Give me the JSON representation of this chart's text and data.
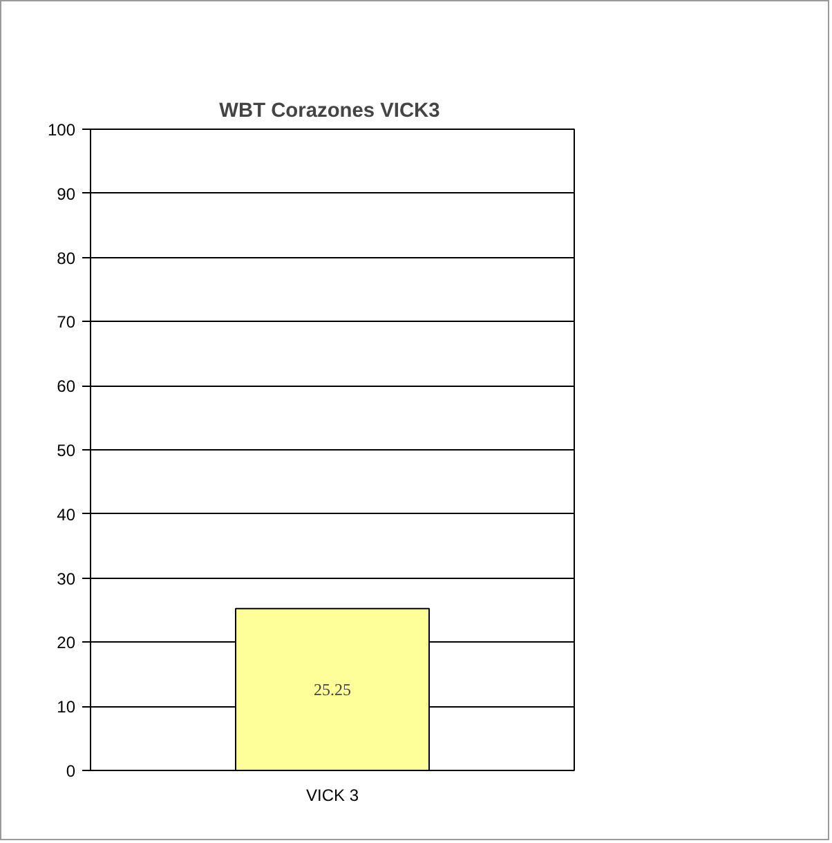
{
  "chart_data": {
    "type": "bar",
    "title": "WBT Corazones  VICK3",
    "categories": [
      "VICK 3"
    ],
    "values": [
      25.25
    ],
    "color": "#ffff99",
    "ylim": [
      0,
      100
    ],
    "yticks": [
      0,
      10,
      20,
      30,
      40,
      50,
      60,
      70,
      80,
      90,
      100
    ],
    "grid": "y",
    "data_labels": true
  }
}
